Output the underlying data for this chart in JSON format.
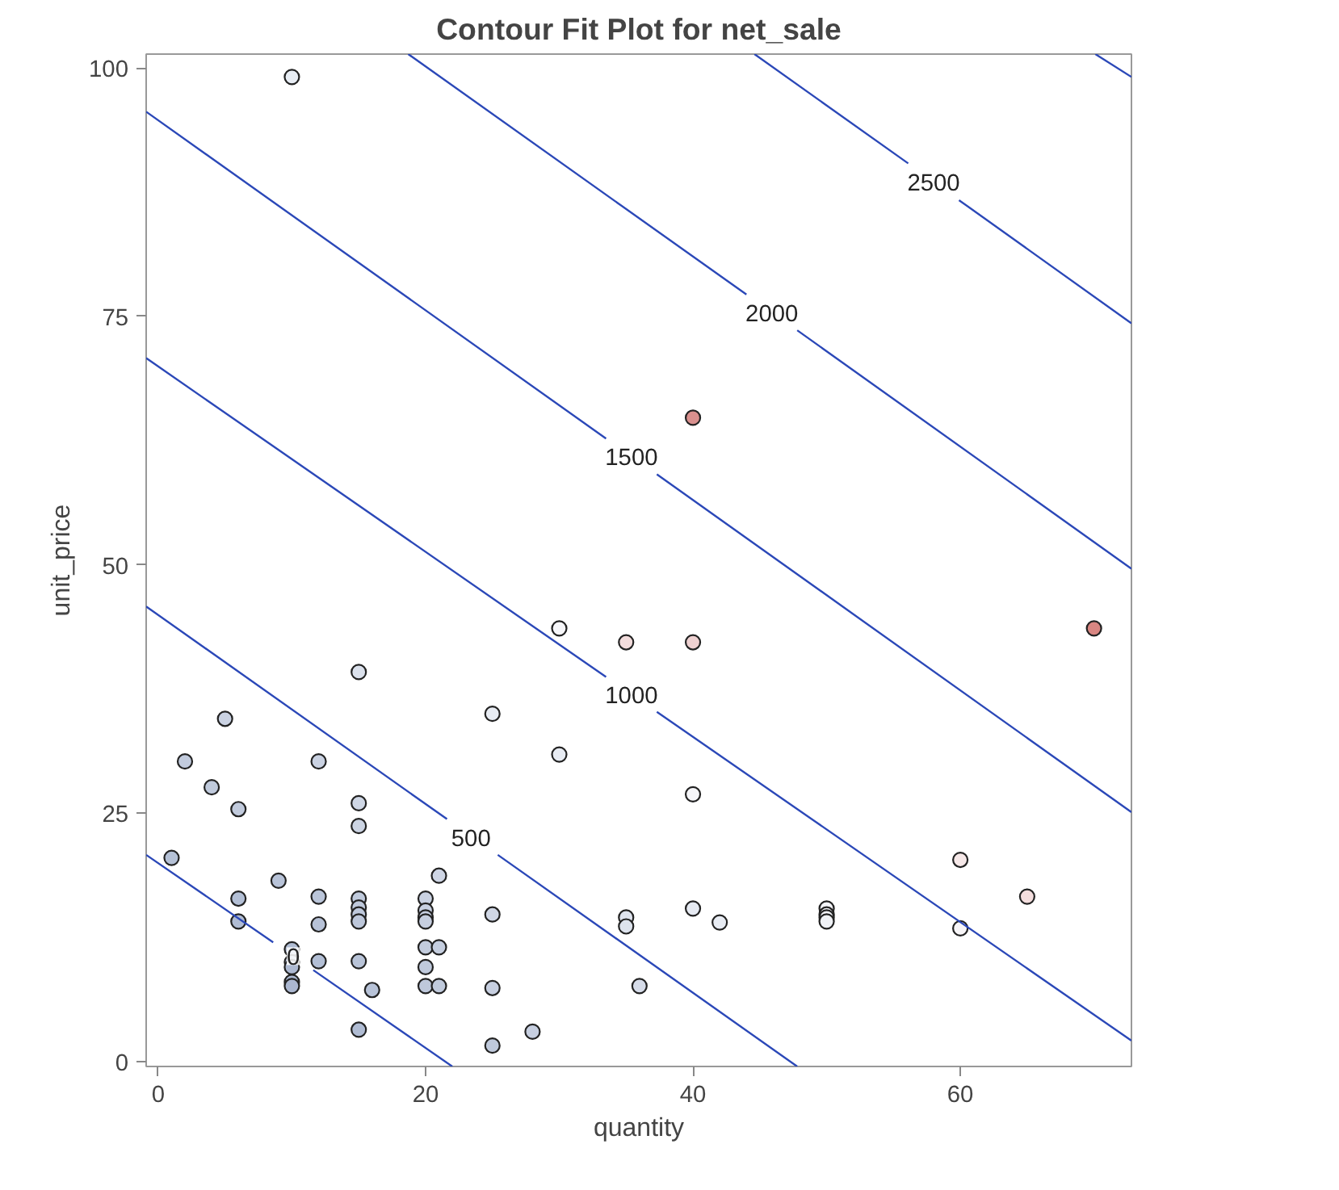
{
  "chart_data": {
    "type": "scatter",
    "title": "Contour Fit Plot for net_sale",
    "xlabel": "quantity",
    "ylabel": "unit_price",
    "xlim": [
      -0.9,
      72.8
    ],
    "ylim": [
      -0.5,
      101.4
    ],
    "xticks": [
      0,
      20,
      40,
      60
    ],
    "yticks": [
      0,
      25,
      50,
      75,
      100
    ],
    "grid": false,
    "legend": false,
    "series": [
      {
        "marker": "circle",
        "x": [
          1,
          2,
          4,
          5,
          6,
          6,
          6,
          9,
          10,
          10,
          10,
          10,
          10,
          10,
          12,
          12,
          12,
          12,
          15,
          15,
          15,
          15,
          15,
          15,
          15,
          15,
          15,
          16,
          20,
          20,
          20,
          20,
          20,
          20,
          20,
          21,
          21,
          21,
          25,
          25,
          25,
          25,
          28,
          30,
          30,
          35,
          35,
          35,
          36,
          40,
          40,
          40,
          40,
          42,
          50,
          50,
          50,
          50,
          60,
          60,
          65,
          70
        ],
        "values": [
          20.5,
          30.2,
          27.6,
          34.5,
          25.4,
          16.4,
          14.1,
          18.2,
          99.1,
          11.3,
          10,
          9.5,
          8,
          7.6,
          30.2,
          16.6,
          13.8,
          10.1,
          39.2,
          26,
          23.7,
          16.4,
          15.5,
          14.8,
          14.1,
          10.1,
          3.2,
          7.2,
          16.4,
          15.2,
          14.5,
          14.1,
          11.5,
          9.5,
          7.6,
          18.7,
          11.5,
          7.6,
          35,
          14.8,
          7.4,
          1.6,
          3,
          43.6,
          30.9,
          42.2,
          14.5,
          13.6,
          7.6,
          64.8,
          42.2,
          26.9,
          15.4,
          14,
          15.4,
          14.8,
          14.5,
          14.1,
          20.3,
          13.4,
          16.6,
          43.6
        ],
        "colors": [
          "#b5c1d6",
          "#c2cbdd",
          "#c0cadc",
          "#cbd3e3",
          "#c1cadc",
          "#b3bfd5",
          "#b0bcd3",
          "#b8c3d8",
          "#e8edf4",
          "#b0bcd3",
          "#aebad2",
          "#adb9d1",
          "#abb8d0",
          "#abb7d0",
          "#cad2e2",
          "#bac5d9",
          "#b7c2d7",
          "#b3bfd5",
          "#dbe1ec",
          "#cfd7e5",
          "#ccd4e3",
          "#c0cadc",
          "#bfc9db",
          "#bec8db",
          "#bdc7da",
          "#b9c4d8",
          "#b0bcd3",
          "#b8c3d8",
          "#cad2e2",
          "#c8d0e1",
          "#c7cfe0",
          "#c6cedf",
          "#c3ccdd",
          "#c0cadc",
          "#bec8db",
          "#cfd6e5",
          "#c5cedf",
          "#c0cadc",
          "#e8ecf3",
          "#d0d7e5",
          "#c7cfe0",
          "#bfc9db",
          "#c7cfe0",
          "#f7f7fa",
          "#e8ecf3",
          "#f2dcdc",
          "#dfe4ee",
          "#dde3ed",
          "#d6dce9",
          "#d9908e",
          "#eed1d1",
          "#f6f6f9",
          "#e6eaf2",
          "#e8ecf3",
          "#f3f4f8",
          "#f2f3f7",
          "#f1f2f7",
          "#f0f2f6",
          "#f6e8e8",
          "#f8f6f8",
          "#f4dede",
          "#d98682"
        ]
      },
      {
        "type": "line",
        "name": "0",
        "color": "#2b48b8",
        "x": [
          -0.9,
          8.6,
          10.1,
          11.6,
          22
        ],
        "values": [
          20.8,
          12,
          null,
          9.2,
          -0.5
        ]
      },
      {
        "type": "line",
        "name": "500",
        "color": "#2b48b8",
        "x": [
          -0.9,
          21.6,
          23.4,
          25.4,
          47.8
        ],
        "values": [
          45.8,
          24.4,
          null,
          20.8,
          -0.5
        ]
      },
      {
        "type": "line",
        "name": "1000",
        "color": "#2b48b8",
        "x": [
          -0.9,
          33.5,
          35.4,
          37.3,
          72.8
        ],
        "values": [
          70.8,
          38.7,
          null,
          35.2,
          2.1
        ]
      },
      {
        "type": "line",
        "name": "1500",
        "color": "#2b48b8",
        "x": [
          -0.9,
          33.5,
          35.4,
          37.3,
          72.8
        ],
        "values": [
          95.6,
          62.7,
          null,
          59.1,
          25.1
        ]
      },
      {
        "type": "line",
        "name": "2000",
        "color": "#2b48b8",
        "x": [
          18.7,
          44,
          45.9,
          47.8,
          72.8
        ],
        "values": [
          101.4,
          77.2,
          null,
          73.6,
          49.6
        ]
      },
      {
        "type": "line",
        "name": "2500",
        "color": "#2b48b8",
        "x": [
          44.6,
          56.1,
          58,
          59.9,
          72.8
        ],
        "values": [
          101.4,
          90.4,
          null,
          86.7,
          74.3
        ]
      },
      {
        "type": "line",
        "color": "#2b48b8",
        "x": [
          70.1,
          72.8
        ],
        "values": [
          101.4,
          99.1
        ]
      }
    ]
  }
}
